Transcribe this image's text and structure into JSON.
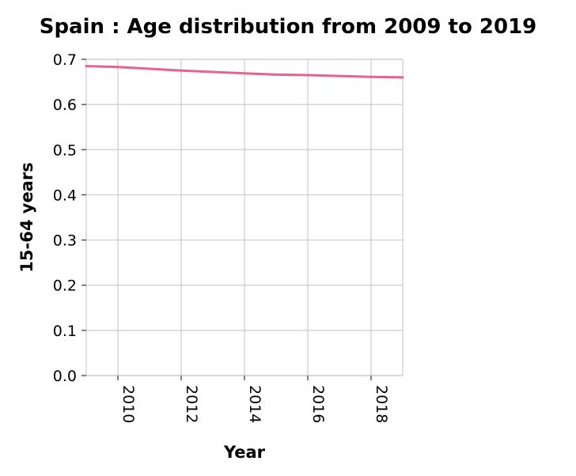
{
  "chart_data": {
    "type": "line",
    "title": "Spain : Age distribution from 2009 to 2019",
    "xlabel": "Year",
    "ylabel": "15-64 years",
    "xlim": [
      2009,
      2019
    ],
    "ylim": [
      0,
      0.7
    ],
    "grid": true,
    "x_ticks": [
      2010,
      2012,
      2014,
      2016,
      2018
    ],
    "y_ticks": [
      "0.0",
      "0.1",
      "0.2",
      "0.3",
      "0.4",
      "0.5",
      "0.6",
      "0.7"
    ],
    "series": [
      {
        "color": "#e8628f",
        "x": [
          2009,
          2010,
          2011,
          2012,
          2013,
          2014,
          2015,
          2016,
          2017,
          2018,
          2019
        ],
        "values": [
          0.685,
          0.683,
          0.679,
          0.675,
          0.672,
          0.669,
          0.666,
          0.665,
          0.663,
          0.661,
          0.66
        ]
      }
    ]
  }
}
